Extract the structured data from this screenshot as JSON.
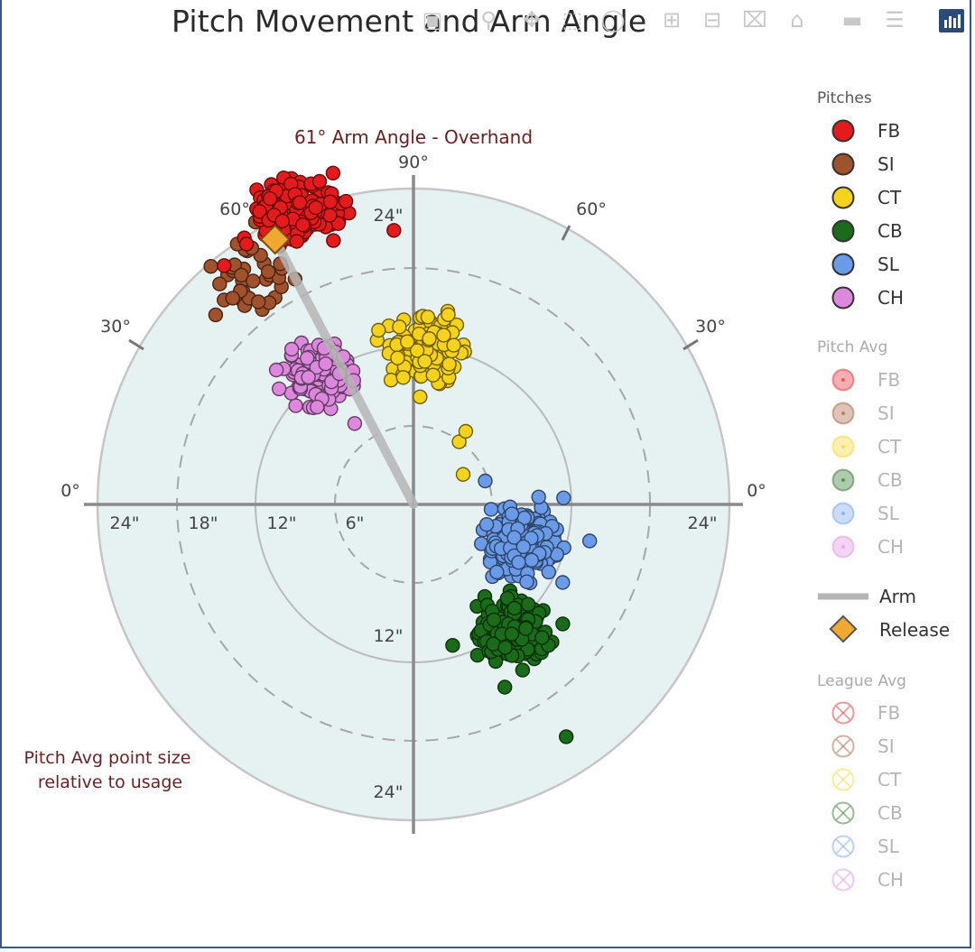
{
  "title": "Pitch Movement and Arm Angle",
  "toolbar_icons": [
    "camera-icon",
    "zoom-icon",
    "pan-icon",
    "box-select-icon",
    "lasso-icon",
    "zoom-in-icon",
    "zoom-out-icon",
    "autoscale-icon",
    "reset-axes-icon",
    "spike-lines-icon",
    "compare-data-icon",
    "plotly-logo-icon"
  ],
  "chart_data": {
    "type": "scatter",
    "subtitle": "61° Arm Angle - Overhand",
    "note": "Pitch Avg point size\nrelative to usage",
    "arm_angle_deg": 61,
    "radial_range_in": [
      0,
      28
    ],
    "rings_in": [
      6,
      12,
      18,
      24
    ],
    "radial_tick_labels": {
      "left": [
        "24\"",
        "18\"",
        "12\"",
        "6\""
      ],
      "right": [
        "24\""
      ],
      "up": [
        "24\""
      ],
      "down": [
        "12\"",
        "24\""
      ]
    },
    "angle_labels": {
      "top": "90°",
      "upper_left": "60°",
      "upper_right": "60°",
      "left_30": "30°",
      "right_30": "30°",
      "left_0": "0°",
      "right_0": "0°"
    },
    "colors": {
      "FB": "#e41a1c",
      "SI": "#a0522d",
      "CT": "#f5d21c",
      "CB": "#1a6b1a",
      "SL": "#6a9be8",
      "CH": "#dd88dd",
      "plot_bg": "#e6f1f1",
      "arm": "#b5b5b5",
      "release": "#f0a830"
    },
    "series": [
      {
        "name": "FB",
        "center": [
          -9,
          22.5
        ],
        "spread": [
          3.0,
          2.2
        ],
        "n": 180,
        "extra": [
          [
            -1.5,
            21
          ],
          [
            -14.5,
            18.3
          ]
        ]
      },
      {
        "name": "SI",
        "center": [
          -12.5,
          18
        ],
        "spread": [
          2.6,
          2.8
        ],
        "n": 40
      },
      {
        "name": "CT",
        "center": [
          0.8,
          11.8
        ],
        "spread": [
          2.7,
          2.2
        ],
        "n": 130,
        "extra": [
          [
            3.5,
            4.8
          ],
          [
            4.0,
            5.6
          ],
          [
            3.8,
            2.3
          ]
        ]
      },
      {
        "name": "CH",
        "center": [
          -7.3,
          10.0
        ],
        "spread": [
          2.2,
          1.8
        ],
        "n": 150,
        "extra": [
          [
            -10.5,
            10.3
          ],
          [
            -4.5,
            6.2
          ]
        ]
      },
      {
        "name": "SL",
        "center": [
          8.4,
          -3.0
        ],
        "spread": [
          2.6,
          2.3
        ],
        "n": 200,
        "extra": [
          [
            5.5,
            1.8
          ],
          [
            11.5,
            0.5
          ],
          [
            13.5,
            -2.8
          ]
        ]
      },
      {
        "name": "CB",
        "center": [
          7.8,
          -9.8
        ],
        "spread": [
          2.4,
          2.0
        ],
        "n": 200,
        "extra": [
          [
            11.7,
            -17.8
          ],
          [
            3.0,
            -10.8
          ],
          [
            7.0,
            -14.0
          ]
        ]
      }
    ],
    "release_point": [
      -10.6,
      20.3
    ],
    "legend": {
      "pitches_title": "Pitches",
      "pitches": [
        "FB",
        "SI",
        "CT",
        "CB",
        "SL",
        "CH"
      ],
      "pitch_avg_title": "Pitch Avg",
      "pitch_avg": [
        "FB",
        "SI",
        "CT",
        "CB",
        "SL",
        "CH"
      ],
      "arm_label": "Arm",
      "release_label": "Release",
      "league_avg_title": "League Avg",
      "league_avg": [
        "FB",
        "SI",
        "CT",
        "CB",
        "SL",
        "CH"
      ],
      "placement": "right"
    }
  }
}
